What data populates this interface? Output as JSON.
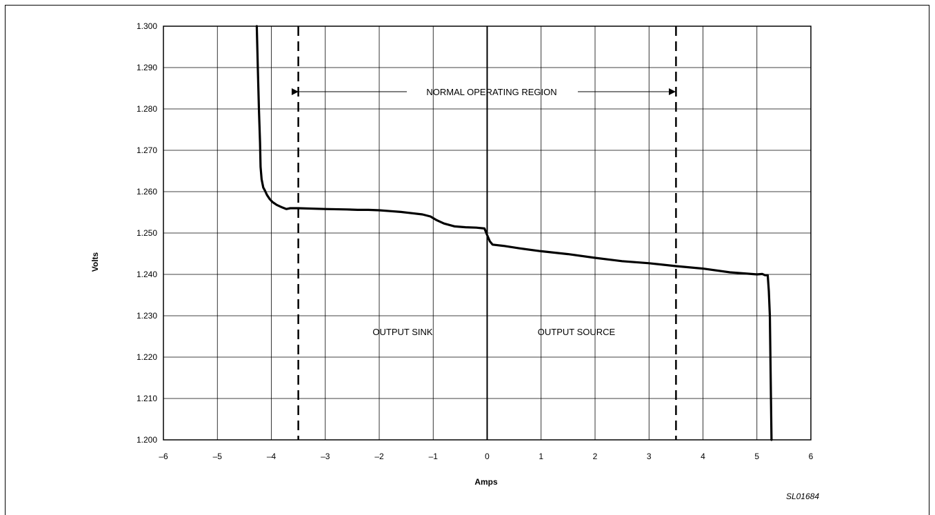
{
  "chart_data": {
    "type": "line",
    "xlabel": "Amps",
    "ylabel": "Volts",
    "xlim": [
      -6,
      6
    ],
    "ylim": [
      1.2,
      1.3
    ],
    "x_ticks": [
      "–6",
      "–5",
      "–4",
      "–3",
      "–2",
      "–1",
      "0",
      "1",
      "2",
      "3",
      "4",
      "5",
      "6"
    ],
    "y_ticks": [
      "1.200",
      "1.210",
      "1.220",
      "1.230",
      "1.240",
      "1.250",
      "1.260",
      "1.270",
      "1.280",
      "1.290",
      "1.300"
    ],
    "grid": true,
    "series": [
      {
        "x": [
          -4.27,
          -4.25,
          -4.23,
          -4.21,
          -4.2,
          -4.18,
          -4.15,
          -4.12,
          -4.08,
          -4.03,
          -3.98,
          -3.9,
          -3.8,
          -3.72,
          -3.65,
          -3.5,
          -3.0,
          -2.6,
          -2.4,
          -2.2,
          -2.0,
          -1.8,
          -1.6,
          -1.4,
          -1.2,
          -1.05,
          -0.95,
          -0.8,
          -0.6,
          -0.4,
          -0.2,
          -0.05,
          0.0,
          0.05,
          0.1,
          0.3,
          0.6,
          1.0,
          1.5,
          2.0,
          2.5,
          3.0,
          3.5,
          4.0,
          4.5,
          5.0,
          5.1,
          5.15,
          5.2,
          5.22,
          5.24,
          5.27
        ],
        "y": [
          1.3,
          1.29,
          1.28,
          1.272,
          1.266,
          1.263,
          1.261,
          1.2603,
          1.2592,
          1.2582,
          1.2575,
          1.2568,
          1.2562,
          1.2558,
          1.256,
          1.256,
          1.2558,
          1.2557,
          1.2556,
          1.2556,
          1.2555,
          1.2553,
          1.2551,
          1.2548,
          1.2545,
          1.254,
          1.2532,
          1.2523,
          1.2516,
          1.2514,
          1.2513,
          1.2511,
          1.2495,
          1.248,
          1.2472,
          1.2469,
          1.2463,
          1.2456,
          1.2449,
          1.244,
          1.2432,
          1.2427,
          1.242,
          1.2414,
          1.2405,
          1.24,
          1.2401,
          1.2398,
          1.2398,
          1.236,
          1.23,
          1.2
        ]
      }
    ],
    "reference_lines": [
      {
        "x": -3.5,
        "style": "dashed"
      },
      {
        "x": 0,
        "style": "solid"
      },
      {
        "x": 3.5,
        "style": "dashed"
      }
    ],
    "annotations": {
      "normal_region": "NORMAL OPERATING REGION",
      "sink": "OUTPUT SINK",
      "source": "OUTPUT SOURCE",
      "figure_id": "SL01684"
    }
  }
}
